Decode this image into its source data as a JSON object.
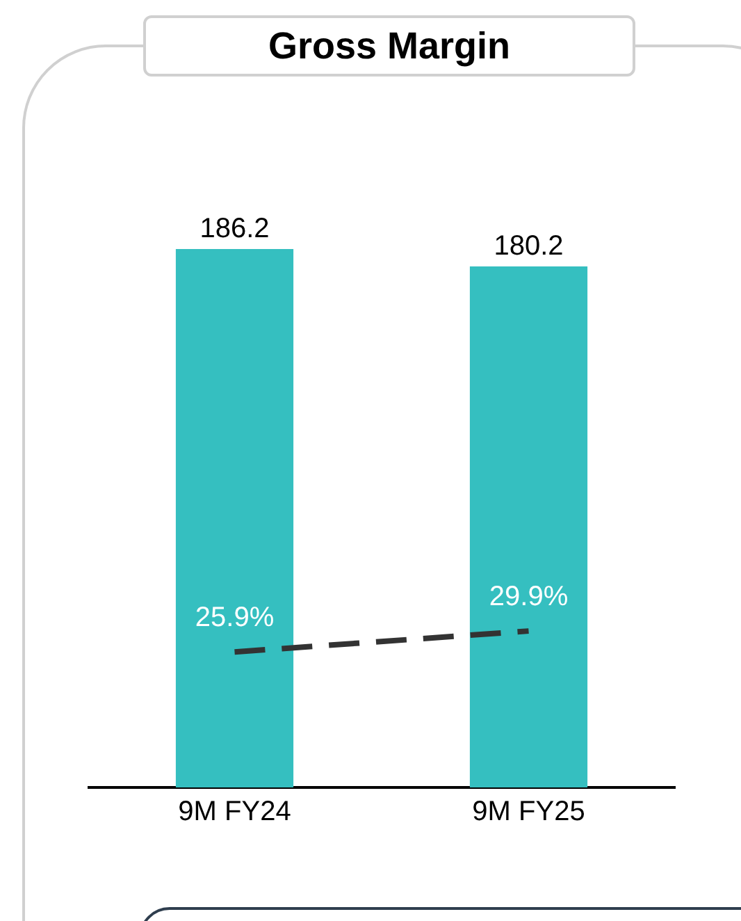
{
  "chart_data": {
    "type": "bar",
    "title": "Gross Margin",
    "categories": [
      "9M FY24",
      "9M FY25"
    ],
    "series": [
      {
        "color": "#35bfc0",
        "values": [
          186.2,
          180.2
        ],
        "value_labels": [
          "186.2",
          "180.2"
        ]
      },
      {
        "type": "line",
        "axis": "y2",
        "color": "#333333",
        "values": [
          25.9,
          29.9
        ],
        "value_labels": [
          "25.9%",
          "29.9%"
        ],
        "line_style": "dashed",
        "marker": "none"
      }
    ],
    "tick_labels": "x",
    "grid": false,
    "legend": false
  }
}
